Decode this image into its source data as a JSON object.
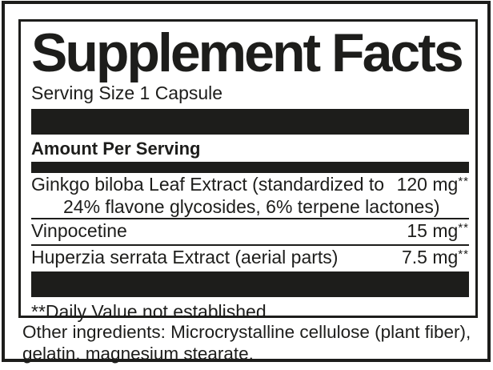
{
  "label": {
    "title": "Supplement Facts",
    "serving_size": "Serving Size 1 Capsule",
    "amount_header": "Amount Per Serving",
    "rows": [
      {
        "name": "Ginkgo biloba Leaf Extract (standardized to",
        "name_line2": "24% flavone glycosides, 6% terpene lactones)",
        "amount": "120 mg",
        "dv_marker": "**"
      },
      {
        "name": "Vinpocetine",
        "amount": "15 mg",
        "dv_marker": "**"
      },
      {
        "name": "Huperzia serrata Extract (aerial parts)",
        "amount": "7.5 mg",
        "dv_marker": "**"
      }
    ],
    "footnote": "**Daily Value not established.",
    "other_ingredients_line1": "Other ingredients: Microcrystalline cellulose (plant fiber),",
    "other_ingredients_line2": "gelatin, magnesium stearate."
  },
  "colors": {
    "ink": "#1d1d1b",
    "paper": "#ffffff"
  }
}
